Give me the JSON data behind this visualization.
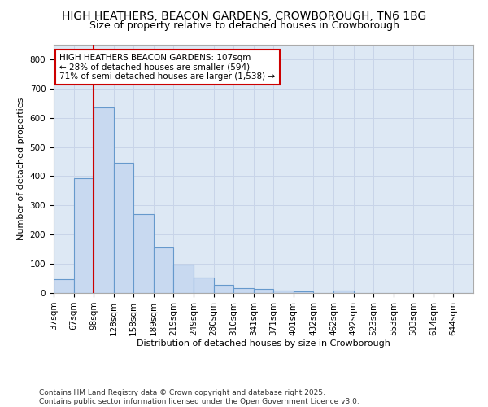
{
  "title_line1": "HIGH HEATHERS, BEACON GARDENS, CROWBOROUGH, TN6 1BG",
  "title_line2": "Size of property relative to detached houses in Crowborough",
  "xlabel": "Distribution of detached houses by size in Crowborough",
  "ylabel": "Number of detached properties",
  "categories": [
    "37sqm",
    "67sqm",
    "98sqm",
    "128sqm",
    "158sqm",
    "189sqm",
    "219sqm",
    "249sqm",
    "280sqm",
    "310sqm",
    "341sqm",
    "371sqm",
    "401sqm",
    "432sqm",
    "462sqm",
    "492sqm",
    "523sqm",
    "553sqm",
    "583sqm",
    "614sqm",
    "644sqm"
  ],
  "bar_values": [
    46,
    393,
    635,
    447,
    270,
    157,
    98,
    52,
    28,
    17,
    13,
    8,
    5,
    0,
    7,
    0,
    0,
    0,
    0,
    0,
    0
  ],
  "bar_color": "#c8d9f0",
  "bar_edge_color": "#6699cc",
  "red_line_index": 2,
  "annotation_text": "HIGH HEATHERS BEACON GARDENS: 107sqm\n← 28% of detached houses are smaller (594)\n71% of semi-detached houses are larger (1,538) →",
  "annotation_box_facecolor": "#ffffff",
  "annotation_box_edgecolor": "#cc0000",
  "ylim": [
    0,
    850
  ],
  "yticks": [
    0,
    100,
    200,
    300,
    400,
    500,
    600,
    700,
    800
  ],
  "grid_color": "#c8d4e8",
  "plot_bg_color": "#dde8f4",
  "fig_bg_color": "#ffffff",
  "footer_line1": "Contains HM Land Registry data © Crown copyright and database right 2025.",
  "footer_line2": "Contains public sector information licensed under the Open Government Licence v3.0.",
  "title_fontsize": 10,
  "subtitle_fontsize": 9,
  "xlabel_fontsize": 8,
  "ylabel_fontsize": 8,
  "tick_fontsize": 7.5,
  "footer_fontsize": 6.5,
  "annotation_fontsize": 7.5
}
